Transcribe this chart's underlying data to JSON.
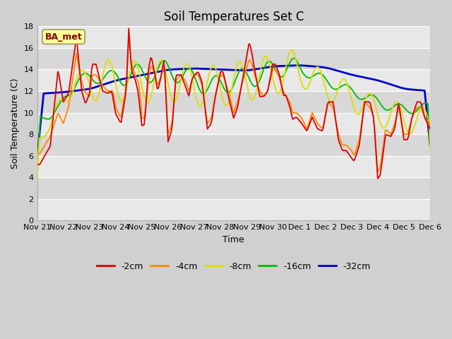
{
  "title": "Soil Temperatures Set C",
  "xlabel": "Time",
  "ylabel": "Soil Temperature (C)",
  "ylim": [
    0,
    18
  ],
  "yticks": [
    0,
    2,
    4,
    6,
    8,
    10,
    12,
    14,
    16,
    18
  ],
  "x_labels": [
    "Nov 21",
    "Nov 22",
    "Nov 23",
    "Nov 24",
    "Nov 25",
    "Nov 26",
    "Nov 27",
    "Nov 28",
    "Nov 29",
    "Nov 30",
    "Dec 1",
    "Dec 2",
    "Dec 3",
    "Dec 4",
    "Dec 5",
    "Dec 6"
  ],
  "colors": {
    "-2cm": "#dd0000",
    "-4cm": "#ff8800",
    "-8cm": "#dddd00",
    "-16cm": "#00bb00",
    "-32cm": "#0000cc"
  },
  "annotation_text": "BA_met",
  "annotation_bg": "#ffff99",
  "annotation_border": "#999966",
  "title_fontsize": 12,
  "axis_fontsize": 9,
  "tick_fontsize": 8,
  "legend_fontsize": 9
}
